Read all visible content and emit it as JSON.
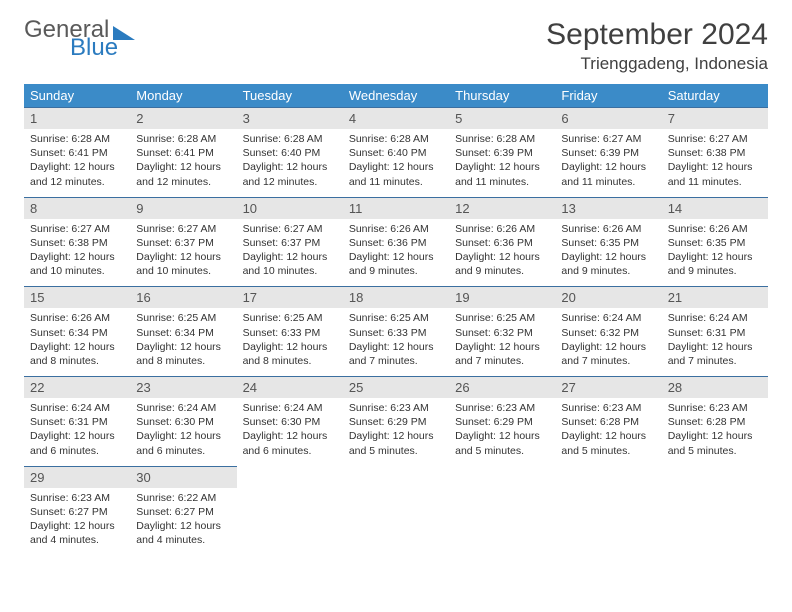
{
  "brand": {
    "word1": "General",
    "word2": "Blue"
  },
  "title": "September 2024",
  "location": "Trienggadeng, Indonesia",
  "colors": {
    "header_bg": "#3b8bc8",
    "header_text": "#ffffff",
    "day_border": "#3b6fa0",
    "daynum_bg": "#e6e6e6",
    "text": "#333333",
    "brand_gray": "#5a5a5a",
    "brand_blue": "#2b7bbf",
    "background": "#ffffff"
  },
  "typography": {
    "title_fontsize": 30,
    "location_fontsize": 17,
    "dow_fontsize": 13,
    "daynum_fontsize": 13,
    "info_fontsize": 10.5
  },
  "dow": [
    "Sunday",
    "Monday",
    "Tuesday",
    "Wednesday",
    "Thursday",
    "Friday",
    "Saturday"
  ],
  "days": [
    {
      "n": "1",
      "sr": "6:28 AM",
      "ss": "6:41 PM",
      "dl": "12 hours and 12 minutes."
    },
    {
      "n": "2",
      "sr": "6:28 AM",
      "ss": "6:41 PM",
      "dl": "12 hours and 12 minutes."
    },
    {
      "n": "3",
      "sr": "6:28 AM",
      "ss": "6:40 PM",
      "dl": "12 hours and 12 minutes."
    },
    {
      "n": "4",
      "sr": "6:28 AM",
      "ss": "6:40 PM",
      "dl": "12 hours and 11 minutes."
    },
    {
      "n": "5",
      "sr": "6:28 AM",
      "ss": "6:39 PM",
      "dl": "12 hours and 11 minutes."
    },
    {
      "n": "6",
      "sr": "6:27 AM",
      "ss": "6:39 PM",
      "dl": "12 hours and 11 minutes."
    },
    {
      "n": "7",
      "sr": "6:27 AM",
      "ss": "6:38 PM",
      "dl": "12 hours and 11 minutes."
    },
    {
      "n": "8",
      "sr": "6:27 AM",
      "ss": "6:38 PM",
      "dl": "12 hours and 10 minutes."
    },
    {
      "n": "9",
      "sr": "6:27 AM",
      "ss": "6:37 PM",
      "dl": "12 hours and 10 minutes."
    },
    {
      "n": "10",
      "sr": "6:27 AM",
      "ss": "6:37 PM",
      "dl": "12 hours and 10 minutes."
    },
    {
      "n": "11",
      "sr": "6:26 AM",
      "ss": "6:36 PM",
      "dl": "12 hours and 9 minutes."
    },
    {
      "n": "12",
      "sr": "6:26 AM",
      "ss": "6:36 PM",
      "dl": "12 hours and 9 minutes."
    },
    {
      "n": "13",
      "sr": "6:26 AM",
      "ss": "6:35 PM",
      "dl": "12 hours and 9 minutes."
    },
    {
      "n": "14",
      "sr": "6:26 AM",
      "ss": "6:35 PM",
      "dl": "12 hours and 9 minutes."
    },
    {
      "n": "15",
      "sr": "6:26 AM",
      "ss": "6:34 PM",
      "dl": "12 hours and 8 minutes."
    },
    {
      "n": "16",
      "sr": "6:25 AM",
      "ss": "6:34 PM",
      "dl": "12 hours and 8 minutes."
    },
    {
      "n": "17",
      "sr": "6:25 AM",
      "ss": "6:33 PM",
      "dl": "12 hours and 8 minutes."
    },
    {
      "n": "18",
      "sr": "6:25 AM",
      "ss": "6:33 PM",
      "dl": "12 hours and 7 minutes."
    },
    {
      "n": "19",
      "sr": "6:25 AM",
      "ss": "6:32 PM",
      "dl": "12 hours and 7 minutes."
    },
    {
      "n": "20",
      "sr": "6:24 AM",
      "ss": "6:32 PM",
      "dl": "12 hours and 7 minutes."
    },
    {
      "n": "21",
      "sr": "6:24 AM",
      "ss": "6:31 PM",
      "dl": "12 hours and 7 minutes."
    },
    {
      "n": "22",
      "sr": "6:24 AM",
      "ss": "6:31 PM",
      "dl": "12 hours and 6 minutes."
    },
    {
      "n": "23",
      "sr": "6:24 AM",
      "ss": "6:30 PM",
      "dl": "12 hours and 6 minutes."
    },
    {
      "n": "24",
      "sr": "6:24 AM",
      "ss": "6:30 PM",
      "dl": "12 hours and 6 minutes."
    },
    {
      "n": "25",
      "sr": "6:23 AM",
      "ss": "6:29 PM",
      "dl": "12 hours and 5 minutes."
    },
    {
      "n": "26",
      "sr": "6:23 AM",
      "ss": "6:29 PM",
      "dl": "12 hours and 5 minutes."
    },
    {
      "n": "27",
      "sr": "6:23 AM",
      "ss": "6:28 PM",
      "dl": "12 hours and 5 minutes."
    },
    {
      "n": "28",
      "sr": "6:23 AM",
      "ss": "6:28 PM",
      "dl": "12 hours and 5 minutes."
    },
    {
      "n": "29",
      "sr": "6:23 AM",
      "ss": "6:27 PM",
      "dl": "12 hours and 4 minutes."
    },
    {
      "n": "30",
      "sr": "6:22 AM",
      "ss": "6:27 PM",
      "dl": "12 hours and 4 minutes."
    }
  ],
  "labels": {
    "sunrise": "Sunrise: ",
    "sunset": "Sunset: ",
    "daylight": "Daylight: "
  },
  "layout": {
    "first_weekday_offset": 0,
    "total_days": 30,
    "columns": 7
  }
}
